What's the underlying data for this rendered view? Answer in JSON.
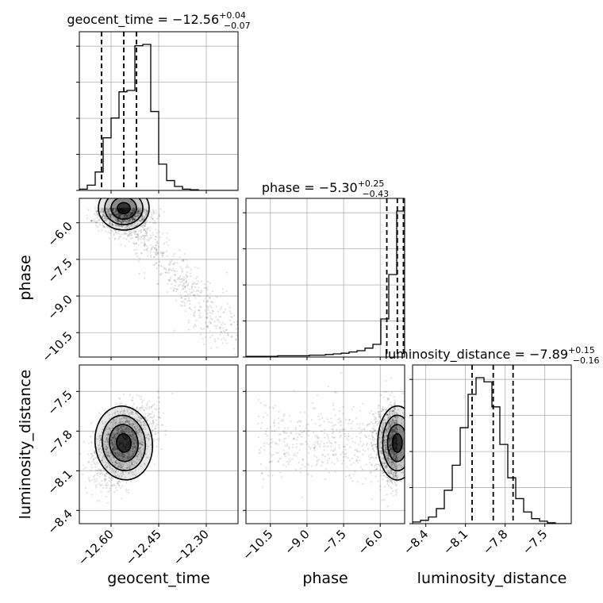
{
  "chart_data": {
    "type": "corner",
    "parameters": [
      "geocent_time",
      "phase",
      "luminosity_distance"
    ],
    "titles": [
      {
        "param": "geocent_time",
        "prefix": "geocent_time = ",
        "value": "−12.56",
        "plus": "+0.04",
        "minus": "−0.07"
      },
      {
        "param": "phase",
        "prefix": "phase = ",
        "value": "−5.30",
        "plus": "+0.25",
        "minus": "−0.43"
      },
      {
        "param": "luminosity_distance",
        "prefix": "luminosity_distance = ",
        "value": "−7.89",
        "plus": "+0.15",
        "minus": "−0.16"
      }
    ],
    "axis_labels": {
      "x": [
        "geocent_time",
        "phase",
        "luminosity_distance"
      ],
      "y": [
        "phase",
        "luminosity_distance"
      ]
    },
    "ranges": {
      "geocent_time": [
        -12.7,
        -12.2
      ],
      "phase": [
        -11.5,
        -5.0
      ],
      "luminosity_distance": [
        -8.5,
        -7.3
      ]
    },
    "ticks": {
      "geocent_time": {
        "values": [
          -12.6,
          -12.45,
          -12.3
        ],
        "labels": [
          "−12.60",
          "−12.45",
          "−12.30"
        ]
      },
      "phase": {
        "values": [
          -10.5,
          -9.0,
          -7.5,
          -6.0
        ],
        "labels": [
          "−10.5",
          "−9.0",
          "−7.5",
          "−6.0"
        ]
      },
      "luminosity_distance": {
        "values": [
          -8.4,
          -8.1,
          -7.8,
          -7.5
        ],
        "labels": [
          "−8.4",
          "−8.1",
          "−7.8",
          "−7.5"
        ]
      }
    },
    "quantiles": {
      "geocent_time": [
        -12.63,
        -12.56,
        -12.52
      ],
      "phase": [
        -5.73,
        -5.3,
        -5.05
      ],
      "luminosity_distance": [
        -8.05,
        -7.89,
        -7.74
      ]
    },
    "histograms": {
      "geocent_time": {
        "edges_start": -12.7,
        "bin_width": 0.025,
        "counts": [
          2,
          8,
          28,
          80,
          110,
          150,
          152,
          220,
          222,
          120,
          40,
          15,
          6,
          2,
          1,
          0,
          0,
          0,
          0,
          0
        ]
      },
      "phase": {
        "edges_start": -11.5,
        "bin_width": 0.325,
        "counts": [
          1,
          1,
          1,
          1,
          2,
          2,
          2,
          2,
          3,
          3,
          4,
          5,
          6,
          8,
          10,
          14,
          20,
          60,
          130,
          230
        ]
      },
      "luminosity_distance": {
        "edges_start": -8.5,
        "bin_width": 0.06,
        "counts": [
          2,
          4,
          8,
          18,
          40,
          70,
          115,
          155,
          175,
          170,
          140,
          95,
          55,
          30,
          14,
          6,
          3,
          1,
          0,
          0
        ]
      }
    },
    "scatter_shapes": {
      "geocent_time|phase": {
        "x_mean": -12.56,
        "x_std": 0.04,
        "y_mean": -5.4,
        "y_std": 0.45,
        "tail": "y decreases toward -11 as x increases to -12.2"
      },
      "geocent_time|luminosity_distance": {
        "x_mean": -12.56,
        "x_std": 0.045,
        "y_mean": -7.89,
        "y_std": 0.14,
        "correlation": 0.4
      },
      "phase|luminosity_distance": {
        "x_mean": -5.3,
        "x_std": 0.4,
        "y_mean": -7.89,
        "y_std": 0.14,
        "tail": "x extends toward -11"
      }
    },
    "grid": true
  }
}
